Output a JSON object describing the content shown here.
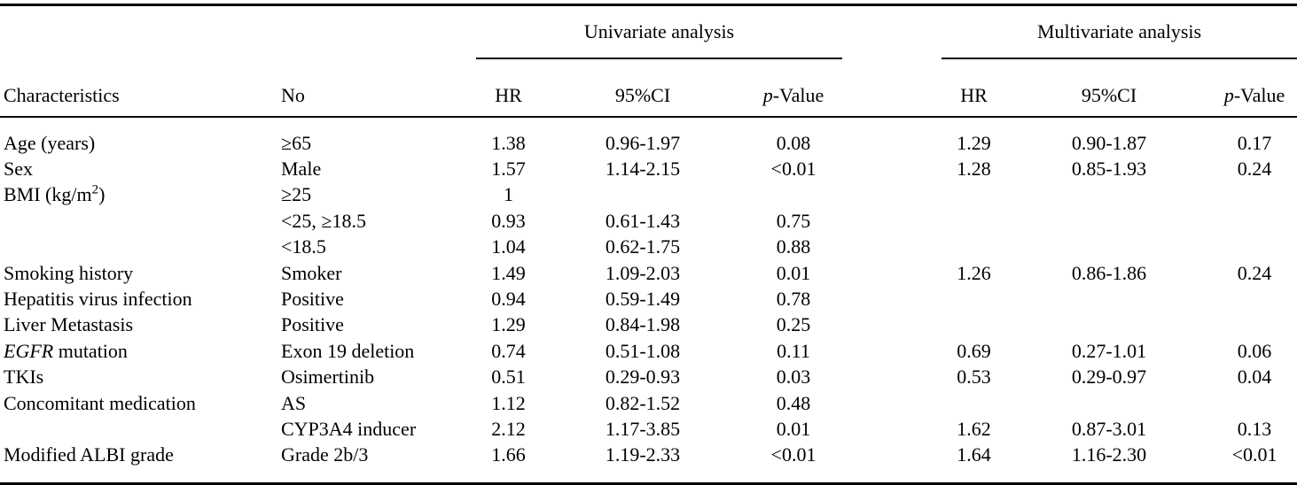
{
  "page": {
    "background_color": "#ffffff",
    "text_color": "#000000",
    "rule_color": "#000000"
  },
  "chart_data": {
    "type": "table",
    "group_headers": [
      "Univariate analysis",
      "Multivariate analysis"
    ],
    "columns": [
      "Characteristics",
      "No",
      "HR",
      "95%CI",
      {
        "parts": [
          {
            "t": "p",
            "s": "i"
          },
          {
            "t": "-Value"
          }
        ]
      },
      "HR",
      "95%CI",
      {
        "parts": [
          {
            "t": "p",
            "s": "i"
          },
          {
            "t": "-Value"
          }
        ]
      }
    ],
    "rows": [
      [
        "Age (years)",
        "≥65",
        "1.38",
        "0.96-1.97",
        "0.08",
        "1.29",
        "0.90-1.87",
        "0.17"
      ],
      [
        "Sex",
        "Male",
        "1.57",
        "1.14-2.15",
        "<0.01",
        "1.28",
        "0.85-1.93",
        "0.24"
      ],
      [
        {
          "parts": [
            {
              "t": "BMI (kg/m"
            },
            {
              "t": "2",
              "s": "sup"
            },
            {
              "t": ")"
            }
          ]
        },
        "≥25",
        "1",
        "",
        "",
        "",
        "",
        ""
      ],
      [
        "",
        "<25, ≥18.5",
        "0.93",
        "0.61-1.43",
        "0.75",
        "",
        "",
        ""
      ],
      [
        "",
        "<18.5",
        "1.04",
        "0.62-1.75",
        "0.88",
        "",
        "",
        ""
      ],
      [
        "Smoking history",
        "Smoker",
        "1.49",
        "1.09-2.03",
        "0.01",
        "1.26",
        "0.86-1.86",
        "0.24"
      ],
      [
        "Hepatitis virus infection",
        "Positive",
        "0.94",
        "0.59-1.49",
        "0.78",
        "",
        "",
        ""
      ],
      [
        "Liver Metastasis",
        "Positive",
        "1.29",
        "0.84-1.98",
        "0.25",
        "",
        "",
        ""
      ],
      [
        {
          "parts": [
            {
              "t": "EGFR",
              "s": "i"
            },
            {
              "t": " mutation"
            }
          ]
        },
        "Exon 19 deletion",
        "0.74",
        "0.51-1.08",
        "0.11",
        "0.69",
        "0.27-1.01",
        "0.06"
      ],
      [
        "TKIs",
        "Osimertinib",
        "0.51",
        "0.29-0.93",
        "0.03",
        "0.53",
        "0.29-0.97",
        "0.04"
      ],
      [
        "Concomitant medication",
        "AS",
        "1.12",
        "0.82-1.52",
        "0.48",
        "",
        "",
        ""
      ],
      [
        "",
        "CYP3A4 inducer",
        "2.12",
        "1.17-3.85",
        "0.01",
        "1.62",
        "0.87-3.01",
        "0.13"
      ],
      [
        "Modified ALBI grade",
        "Grade 2b/3",
        "1.66",
        "1.19-2.33",
        "<0.01",
        "1.64",
        "1.16-2.30",
        "<0.01"
      ]
    ]
  }
}
